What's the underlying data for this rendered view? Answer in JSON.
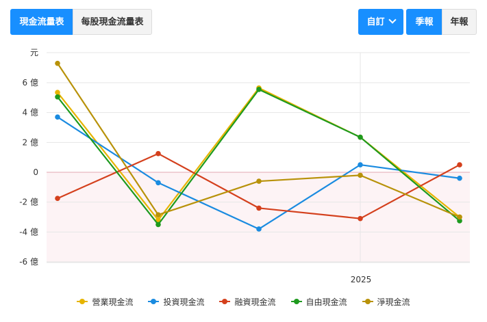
{
  "tabs": {
    "cash_flow": "現金流量表",
    "per_share": "每股現金流量表"
  },
  "controls": {
    "custom": "自訂",
    "quarterly": "季報",
    "annual": "年報"
  },
  "colors": {
    "accent": "#188fff"
  },
  "chart_data": {
    "type": "line",
    "y_unit_label": "元",
    "y_ticks": [
      {
        "value": 6,
        "label": "6 億"
      },
      {
        "value": 4,
        "label": "4 億"
      },
      {
        "value": 2,
        "label": "2 億"
      },
      {
        "value": 0,
        "label": "0"
      },
      {
        "value": -2,
        "label": "-2 億"
      },
      {
        "value": -4,
        "label": "-4 億"
      },
      {
        "value": -6,
        "label": "-6 億"
      }
    ],
    "ylim": [
      -6,
      7.8
    ],
    "x_count": 5,
    "x_tick_labels": [
      {
        "index": 3,
        "label": "2025"
      }
    ],
    "negative_region_shaded": true,
    "series": [
      {
        "name": "營業現金流",
        "color": "#e6b400",
        "values": [
          5.35,
          -3.2,
          5.65,
          2.35,
          -3.0
        ]
      },
      {
        "name": "投資現金流",
        "color": "#1a8be0",
        "values": [
          3.7,
          -0.7,
          -3.8,
          0.5,
          -0.4
        ]
      },
      {
        "name": "融資現金流",
        "color": "#d4401d",
        "values": [
          -1.75,
          1.25,
          -2.4,
          -3.1,
          0.5
        ]
      },
      {
        "name": "自由現金流",
        "color": "#1e9a1e",
        "values": [
          5.05,
          -3.5,
          5.55,
          2.35,
          -3.25
        ]
      },
      {
        "name": "淨現金流",
        "color": "#b8920a",
        "values": [
          7.3,
          -2.85,
          -0.6,
          -0.2,
          -3.0
        ]
      }
    ]
  }
}
